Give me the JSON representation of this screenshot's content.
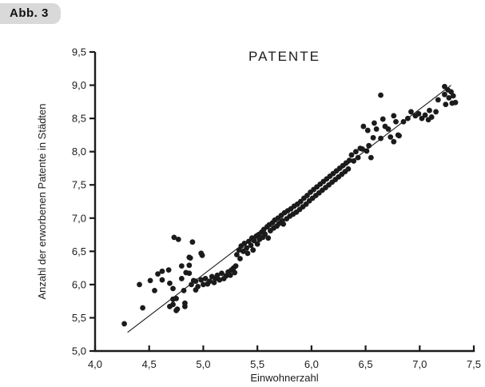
{
  "figure": {
    "label": "Abb. 3"
  },
  "colors": {
    "background": "#ffffff",
    "badge_bg": "#d9d9d9",
    "ink": "#1b1b1b"
  },
  "chart_data": {
    "type": "scatter",
    "title": "PATENTE",
    "xlabel": "Einwohnerzahl",
    "ylabel": "Anzahl der erworbenen Patente in Städten",
    "xlim": [
      4.0,
      7.5
    ],
    "ylim": [
      5.0,
      9.5
    ],
    "grid": false,
    "marker_color": "#1b1b1b",
    "axis_color": "#1b1b1b",
    "x_ticks": {
      "values": [
        4.0,
        4.5,
        5.0,
        5.5,
        6.0,
        6.5,
        7.0,
        7.5
      ],
      "labels": [
        "4,0",
        "4,5",
        "5,0",
        "5,5",
        "6,0",
        "6,5",
        "7,0",
        "7,5"
      ]
    },
    "y_ticks": {
      "values": [
        5.0,
        5.5,
        6.0,
        6.5,
        7.0,
        7.5,
        8.0,
        8.5,
        9.0,
        9.5
      ],
      "labels": [
        "5,0",
        "5,5",
        "6,0",
        "6,5",
        "7,0",
        "7,5",
        "8,0",
        "8,5",
        "9,0",
        "9,5"
      ]
    },
    "regression_line": {
      "x1": 4.3,
      "y1": 5.28,
      "x2": 7.29,
      "y2": 9.0
    },
    "points": [
      [
        4.27,
        5.41
      ],
      [
        4.44,
        5.65
      ],
      [
        4.41,
        6.0
      ],
      [
        4.51,
        6.06
      ],
      [
        4.55,
        5.91
      ],
      [
        4.58,
        6.16
      ],
      [
        4.62,
        6.07
      ],
      [
        4.62,
        6.2
      ],
      [
        4.68,
        6.22
      ],
      [
        4.69,
        5.67
      ],
      [
        4.69,
        6.02
      ],
      [
        4.72,
        5.78
      ],
      [
        4.72,
        5.94
      ],
      [
        4.72,
        5.7
      ],
      [
        4.73,
        6.71
      ],
      [
        4.75,
        5.61
      ],
      [
        4.75,
        5.79
      ],
      [
        4.76,
        5.63
      ],
      [
        4.77,
        6.68
      ],
      [
        4.8,
        6.28
      ],
      [
        4.8,
        6.09
      ],
      [
        4.82,
        5.91
      ],
      [
        4.83,
        5.67
      ],
      [
        4.83,
        5.72
      ],
      [
        4.84,
        6.18
      ],
      [
        4.87,
        6.29
      ],
      [
        4.87,
        6.41
      ],
      [
        4.87,
        6.17
      ],
      [
        4.88,
        6.4
      ],
      [
        4.9,
        6.64
      ],
      [
        4.91,
        6.06
      ],
      [
        4.93,
        5.92
      ],
      [
        4.98,
        6.47
      ],
      [
        4.99,
        6.44
      ],
      [
        4.89,
        6.0
      ],
      [
        4.93,
        6.05
      ],
      [
        4.95,
        5.97
      ],
      [
        4.98,
        6.07
      ],
      [
        5.0,
        6.0
      ],
      [
        5.02,
        6.09
      ],
      [
        5.04,
        6.01
      ],
      [
        5.06,
        6.05
      ],
      [
        5.08,
        6.12
      ],
      [
        5.1,
        6.03
      ],
      [
        5.11,
        6.09
      ],
      [
        5.13,
        6.14
      ],
      [
        5.15,
        6.07
      ],
      [
        5.17,
        6.17
      ],
      [
        5.19,
        6.09
      ],
      [
        5.21,
        6.13
      ],
      [
        5.23,
        6.19
      ],
      [
        5.25,
        6.14
      ],
      [
        5.26,
        6.22
      ],
      [
        5.28,
        6.25
      ],
      [
        5.29,
        6.18
      ],
      [
        5.3,
        6.28
      ],
      [
        5.31,
        6.45
      ],
      [
        5.33,
        6.52
      ],
      [
        5.34,
        6.39
      ],
      [
        5.35,
        6.58
      ],
      [
        5.37,
        6.5
      ],
      [
        5.38,
        6.62
      ],
      [
        5.4,
        6.55
      ],
      [
        5.41,
        6.47
      ],
      [
        5.42,
        6.65
      ],
      [
        5.44,
        6.59
      ],
      [
        5.45,
        6.7
      ],
      [
        5.46,
        6.52
      ],
      [
        5.47,
        6.66
      ],
      [
        5.49,
        6.73
      ],
      [
        5.5,
        6.61
      ],
      [
        5.51,
        6.75
      ],
      [
        5.52,
        6.68
      ],
      [
        5.54,
        6.79
      ],
      [
        5.55,
        6.71
      ],
      [
        5.56,
        6.83
      ],
      [
        5.57,
        6.76
      ],
      [
        5.59,
        6.87
      ],
      [
        5.6,
        6.7
      ],
      [
        5.61,
        6.9
      ],
      [
        5.62,
        6.81
      ],
      [
        5.64,
        6.93
      ],
      [
        5.65,
        6.85
      ],
      [
        5.66,
        6.97
      ],
      [
        5.68,
        6.88
      ],
      [
        5.69,
        7.0
      ],
      [
        5.7,
        6.92
      ],
      [
        5.72,
        7.04
      ],
      [
        5.73,
        6.96
      ],
      [
        5.74,
        6.91
      ],
      [
        5.75,
        7.08
      ],
      [
        5.77,
        6.99
      ],
      [
        5.78,
        7.11
      ],
      [
        5.8,
        7.03
      ],
      [
        5.81,
        7.14
      ],
      [
        5.83,
        7.06
      ],
      [
        5.84,
        7.18
      ],
      [
        5.86,
        7.09
      ],
      [
        5.87,
        7.21
      ],
      [
        5.89,
        7.13
      ],
      [
        5.9,
        7.25
      ],
      [
        5.92,
        7.17
      ],
      [
        5.93,
        7.3
      ],
      [
        5.95,
        7.21
      ],
      [
        5.96,
        7.34
      ],
      [
        5.98,
        7.26
      ],
      [
        5.99,
        7.39
      ],
      [
        6.01,
        7.3
      ],
      [
        6.02,
        7.43
      ],
      [
        6.04,
        7.34
      ],
      [
        6.05,
        7.47
      ],
      [
        6.07,
        7.38
      ],
      [
        6.08,
        7.51
      ],
      [
        6.1,
        7.42
      ],
      [
        6.11,
        7.55
      ],
      [
        6.13,
        7.46
      ],
      [
        6.14,
        7.59
      ],
      [
        6.16,
        7.5
      ],
      [
        6.17,
        7.63
      ],
      [
        6.19,
        7.54
      ],
      [
        6.2,
        7.67
      ],
      [
        6.22,
        7.58
      ],
      [
        6.23,
        7.71
      ],
      [
        6.25,
        7.62
      ],
      [
        6.26,
        7.75
      ],
      [
        6.28,
        7.66
      ],
      [
        6.29,
        7.79
      ],
      [
        6.31,
        7.7
      ],
      [
        6.32,
        7.83
      ],
      [
        6.34,
        7.74
      ],
      [
        6.35,
        7.87
      ],
      [
        6.37,
        7.95
      ],
      [
        6.39,
        7.86
      ],
      [
        6.41,
        8.0
      ],
      [
        6.43,
        7.91
      ],
      [
        6.45,
        8.05
      ],
      [
        6.47,
        8.04
      ],
      [
        6.48,
        8.38
      ],
      [
        6.51,
        8.01
      ],
      [
        6.52,
        8.32
      ],
      [
        6.53,
        8.09
      ],
      [
        6.55,
        7.91
      ],
      [
        6.57,
        8.21
      ],
      [
        6.58,
        8.43
      ],
      [
        6.6,
        8.34
      ],
      [
        6.64,
        8.2
      ],
      [
        6.64,
        8.85
      ],
      [
        6.66,
        8.49
      ],
      [
        6.68,
        8.38
      ],
      [
        6.71,
        8.34
      ],
      [
        6.73,
        8.22
      ],
      [
        6.76,
        8.15
      ],
      [
        6.76,
        8.54
      ],
      [
        6.78,
        8.45
      ],
      [
        6.8,
        8.25
      ],
      [
        6.81,
        8.24
      ],
      [
        6.85,
        8.45
      ],
      [
        6.89,
        8.5
      ],
      [
        6.92,
        8.6
      ],
      [
        6.96,
        8.54
      ],
      [
        6.99,
        8.57
      ],
      [
        7.02,
        8.5
      ],
      [
        7.05,
        8.55
      ],
      [
        7.08,
        8.48
      ],
      [
        7.09,
        8.62
      ],
      [
        7.11,
        8.52
      ],
      [
        7.15,
        8.6
      ],
      [
        7.17,
        8.78
      ],
      [
        7.23,
        8.98
      ],
      [
        7.23,
        8.86
      ],
      [
        7.24,
        8.71
      ],
      [
        7.26,
        8.93
      ],
      [
        7.27,
        8.81
      ],
      [
        7.29,
        8.9
      ],
      [
        7.3,
        8.73
      ],
      [
        7.31,
        8.84
      ],
      [
        7.33,
        8.74
      ]
    ]
  }
}
